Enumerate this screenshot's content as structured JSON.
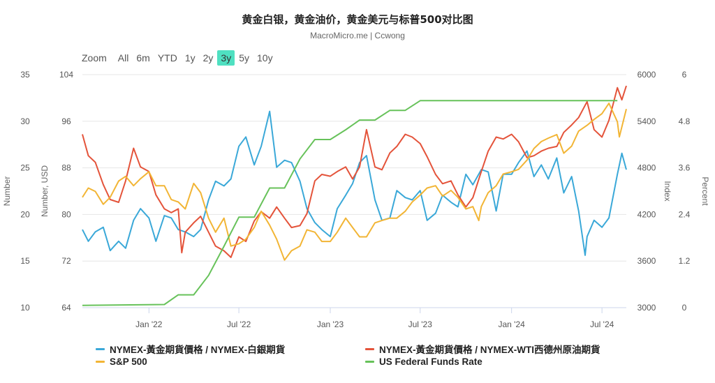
{
  "header": {
    "title": "黄金白银，黄金油价，黄金美元与标普500对比图",
    "subtitle": "MacroMicro.me | Ccwong"
  },
  "range_selector": {
    "label": "Zoom",
    "buttons": [
      "All",
      "6m",
      "YTD",
      "1y",
      "2y",
      "3y",
      "5y",
      "10y"
    ],
    "active": "3y"
  },
  "chart_data": {
    "type": "line",
    "x_range": [
      "2021-08-20",
      "2024-08-19"
    ],
    "x_ticks": [
      {
        "date": "2022-01-01",
        "label": "Jan '22"
      },
      {
        "date": "2022-07-01",
        "label": "Jul '22"
      },
      {
        "date": "2023-01-01",
        "label": "Jan '23"
      },
      {
        "date": "2023-07-01",
        "label": "Jul '23"
      },
      {
        "date": "2024-01-01",
        "label": "Jan '24"
      },
      {
        "date": "2024-07-01",
        "label": "Jul '24"
      }
    ],
    "grid": true,
    "legend_position": "bottom",
    "axes": [
      {
        "id": "number",
        "title": "Number",
        "side": "left",
        "range": [
          10,
          35
        ],
        "ticks": [
          "10",
          "15",
          "20",
          "25",
          "30",
          "35"
        ]
      },
      {
        "id": "usd",
        "title": "Number, USD",
        "side": "left",
        "range": [
          64,
          104
        ],
        "ticks": [
          "64",
          "72",
          "80",
          "88",
          "96",
          "104"
        ]
      },
      {
        "id": "index",
        "title": "Index",
        "side": "right",
        "range": [
          3000,
          6000
        ],
        "ticks": [
          "3000",
          "3600",
          "4200",
          "4800",
          "5400",
          "6000"
        ]
      },
      {
        "id": "percent",
        "title": "Percent",
        "side": "right",
        "range": [
          0,
          6
        ],
        "ticks": [
          "0",
          "1.2",
          "2.4",
          "3.6",
          "4.8",
          "6"
        ]
      }
    ],
    "series": [
      {
        "name": "NYMEX-黃金期貨價格 / NYMEX-白銀期貨",
        "axis": "usd",
        "color": "#3aa8d8",
        "points": [
          [
            "2021-08-20",
            77.4
          ],
          [
            "2021-09-01",
            75.4
          ],
          [
            "2021-09-15",
            77.0
          ],
          [
            "2021-10-01",
            77.8
          ],
          [
            "2021-10-15",
            73.8
          ],
          [
            "2021-11-01",
            75.4
          ],
          [
            "2021-11-15",
            74.2
          ],
          [
            "2021-12-01",
            79.0
          ],
          [
            "2021-12-15",
            81.0
          ],
          [
            "2022-01-01",
            79.4
          ],
          [
            "2022-01-15",
            75.4
          ],
          [
            "2022-02-01",
            79.8
          ],
          [
            "2022-02-15",
            79.4
          ],
          [
            "2022-03-01",
            77.4
          ],
          [
            "2022-03-15",
            77.0
          ],
          [
            "2022-04-01",
            76.2
          ],
          [
            "2022-04-15",
            77.4
          ],
          [
            "2022-05-01",
            82.5
          ],
          [
            "2022-05-15",
            85.7
          ],
          [
            "2022-06-01",
            84.9
          ],
          [
            "2022-06-15",
            86.1
          ],
          [
            "2022-07-01",
            91.7
          ],
          [
            "2022-07-15",
            93.3
          ],
          [
            "2022-08-01",
            88.5
          ],
          [
            "2022-08-15",
            91.7
          ],
          [
            "2022-09-01",
            97.7
          ],
          [
            "2022-09-15",
            88.1
          ],
          [
            "2022-10-01",
            89.3
          ],
          [
            "2022-10-15",
            88.9
          ],
          [
            "2022-11-01",
            85.7
          ],
          [
            "2022-11-15",
            81.0
          ],
          [
            "2022-12-01",
            78.6
          ],
          [
            "2022-12-15",
            77.4
          ],
          [
            "2023-01-01",
            76.2
          ],
          [
            "2023-01-15",
            81.0
          ],
          [
            "2023-02-01",
            83.3
          ],
          [
            "2023-02-15",
            85.3
          ],
          [
            "2023-03-01",
            88.9
          ],
          [
            "2023-03-15",
            90.1
          ],
          [
            "2023-04-01",
            82.5
          ],
          [
            "2023-04-15",
            79.0
          ],
          [
            "2023-05-01",
            79.4
          ],
          [
            "2023-05-15",
            84.1
          ],
          [
            "2023-06-01",
            82.9
          ],
          [
            "2023-06-15",
            82.5
          ],
          [
            "2023-07-01",
            84.1
          ],
          [
            "2023-07-15",
            79.0
          ],
          [
            "2023-08-01",
            80.2
          ],
          [
            "2023-08-15",
            83.3
          ],
          [
            "2023-09-01",
            82.1
          ],
          [
            "2023-09-15",
            81.3
          ],
          [
            "2023-10-01",
            86.9
          ],
          [
            "2023-10-15",
            85.1
          ],
          [
            "2023-11-01",
            87.7
          ],
          [
            "2023-11-15",
            87.3
          ],
          [
            "2023-12-01",
            80.6
          ],
          [
            "2023-12-15",
            86.9
          ],
          [
            "2024-01-01",
            86.9
          ],
          [
            "2024-01-15",
            88.9
          ],
          [
            "2024-02-01",
            90.9
          ],
          [
            "2024-02-15",
            86.5
          ],
          [
            "2024-03-01",
            88.5
          ],
          [
            "2024-03-15",
            86.1
          ],
          [
            "2024-04-01",
            89.7
          ],
          [
            "2024-04-15",
            83.7
          ],
          [
            "2024-05-01",
            86.5
          ],
          [
            "2024-05-15",
            80.6
          ],
          [
            "2024-05-28",
            73.0
          ],
          [
            "2024-06-01",
            76.2
          ],
          [
            "2024-06-15",
            79.0
          ],
          [
            "2024-07-01",
            77.8
          ],
          [
            "2024-07-15",
            79.4
          ],
          [
            "2024-08-01",
            86.9
          ],
          [
            "2024-08-10",
            90.5
          ],
          [
            "2024-08-19",
            87.7
          ]
        ]
      },
      {
        "name": "NYMEX-黃金期貨價格 / NYMEX-WTI西德州原油期貨",
        "axis": "number",
        "color": "#e4533a",
        "points": [
          [
            "2021-08-20",
            28.6
          ],
          [
            "2021-09-01",
            26.3
          ],
          [
            "2021-09-15",
            25.6
          ],
          [
            "2021-10-01",
            23.2
          ],
          [
            "2021-10-15",
            21.6
          ],
          [
            "2021-11-01",
            21.3
          ],
          [
            "2021-11-15",
            23.6
          ],
          [
            "2021-12-01",
            27.1
          ],
          [
            "2021-12-15",
            25.1
          ],
          [
            "2022-01-01",
            24.6
          ],
          [
            "2022-01-15",
            22.1
          ],
          [
            "2022-02-01",
            20.6
          ],
          [
            "2022-02-15",
            20.2
          ],
          [
            "2022-03-01",
            20.6
          ],
          [
            "2022-03-08",
            15.9
          ],
          [
            "2022-03-15",
            18.1
          ],
          [
            "2022-04-01",
            19.1
          ],
          [
            "2022-04-15",
            19.8
          ],
          [
            "2022-05-01",
            18.1
          ],
          [
            "2022-05-15",
            16.6
          ],
          [
            "2022-06-01",
            16.1
          ],
          [
            "2022-06-15",
            15.4
          ],
          [
            "2022-07-01",
            17.6
          ],
          [
            "2022-07-15",
            17.1
          ],
          [
            "2022-08-01",
            19.3
          ],
          [
            "2022-08-15",
            20.3
          ],
          [
            "2022-09-01",
            19.6
          ],
          [
            "2022-09-15",
            20.8
          ],
          [
            "2022-10-01",
            19.6
          ],
          [
            "2022-10-15",
            18.6
          ],
          [
            "2022-11-01",
            18.8
          ],
          [
            "2022-11-15",
            20.1
          ],
          [
            "2022-12-01",
            23.6
          ],
          [
            "2022-12-15",
            24.3
          ],
          [
            "2023-01-01",
            24.1
          ],
          [
            "2023-01-15",
            24.6
          ],
          [
            "2023-02-01",
            25.1
          ],
          [
            "2023-02-15",
            23.8
          ],
          [
            "2023-03-01",
            25.1
          ],
          [
            "2023-03-15",
            29.1
          ],
          [
            "2023-04-01",
            25.1
          ],
          [
            "2023-04-15",
            24.8
          ],
          [
            "2023-05-01",
            26.6
          ],
          [
            "2023-05-15",
            27.3
          ],
          [
            "2023-06-01",
            28.6
          ],
          [
            "2023-06-15",
            28.3
          ],
          [
            "2023-07-01",
            27.6
          ],
          [
            "2023-07-15",
            26.2
          ],
          [
            "2023-08-01",
            24.3
          ],
          [
            "2023-08-15",
            23.3
          ],
          [
            "2023-09-01",
            23.6
          ],
          [
            "2023-09-15",
            22.1
          ],
          [
            "2023-10-01",
            20.8
          ],
          [
            "2023-10-15",
            21.8
          ],
          [
            "2023-11-01",
            24.6
          ],
          [
            "2023-11-15",
            26.8
          ],
          [
            "2023-12-01",
            28.3
          ],
          [
            "2023-12-15",
            28.1
          ],
          [
            "2024-01-01",
            28.6
          ],
          [
            "2024-01-15",
            27.8
          ],
          [
            "2024-02-01",
            26.1
          ],
          [
            "2024-02-15",
            26.3
          ],
          [
            "2024-03-01",
            26.8
          ],
          [
            "2024-03-15",
            27.1
          ],
          [
            "2024-04-01",
            27.3
          ],
          [
            "2024-04-15",
            28.8
          ],
          [
            "2024-05-01",
            29.6
          ],
          [
            "2024-05-15",
            30.4
          ],
          [
            "2024-06-01",
            32.1
          ],
          [
            "2024-06-15",
            29.1
          ],
          [
            "2024-07-01",
            28.3
          ],
          [
            "2024-07-15",
            30.1
          ],
          [
            "2024-08-01",
            33.6
          ],
          [
            "2024-08-10",
            32.3
          ],
          [
            "2024-08-19",
            33.8
          ]
        ]
      },
      {
        "name": "S&P 500",
        "axis": "index",
        "color": "#f2b535",
        "points": [
          [
            "2021-08-20",
            4421
          ],
          [
            "2021-09-01",
            4540
          ],
          [
            "2021-09-15",
            4496
          ],
          [
            "2021-10-01",
            4331
          ],
          [
            "2021-10-15",
            4421
          ],
          [
            "2021-11-01",
            4630
          ],
          [
            "2021-11-15",
            4690
          ],
          [
            "2021-12-01",
            4570
          ],
          [
            "2021-12-15",
            4660
          ],
          [
            "2022-01-01",
            4750
          ],
          [
            "2022-01-15",
            4570
          ],
          [
            "2022-02-01",
            4570
          ],
          [
            "2022-02-15",
            4391
          ],
          [
            "2022-03-01",
            4361
          ],
          [
            "2022-03-15",
            4271
          ],
          [
            "2022-04-01",
            4600
          ],
          [
            "2022-04-15",
            4481
          ],
          [
            "2022-05-01",
            4152
          ],
          [
            "2022-05-15",
            3972
          ],
          [
            "2022-06-01",
            4152
          ],
          [
            "2022-06-15",
            3793
          ],
          [
            "2022-07-01",
            3823
          ],
          [
            "2022-07-15",
            3882
          ],
          [
            "2022-08-01",
            4032
          ],
          [
            "2022-08-15",
            4241
          ],
          [
            "2022-09-01",
            4062
          ],
          [
            "2022-09-15",
            3882
          ],
          [
            "2022-10-01",
            3613
          ],
          [
            "2022-10-15",
            3733
          ],
          [
            "2022-11-01",
            3793
          ],
          [
            "2022-11-15",
            4002
          ],
          [
            "2022-12-01",
            3972
          ],
          [
            "2022-12-15",
            3852
          ],
          [
            "2023-01-01",
            3852
          ],
          [
            "2023-01-15",
            3972
          ],
          [
            "2023-02-01",
            4152
          ],
          [
            "2023-02-15",
            4032
          ],
          [
            "2023-03-01",
            3912
          ],
          [
            "2023-03-15",
            3912
          ],
          [
            "2023-04-01",
            4092
          ],
          [
            "2023-04-15",
            4122
          ],
          [
            "2023-05-01",
            4152
          ],
          [
            "2023-05-15",
            4152
          ],
          [
            "2023-06-01",
            4241
          ],
          [
            "2023-06-15",
            4361
          ],
          [
            "2023-07-01",
            4451
          ],
          [
            "2023-07-15",
            4540
          ],
          [
            "2023-08-01",
            4570
          ],
          [
            "2023-08-15",
            4436
          ],
          [
            "2023-09-01",
            4510
          ],
          [
            "2023-09-15",
            4421
          ],
          [
            "2023-10-01",
            4271
          ],
          [
            "2023-10-15",
            4301
          ],
          [
            "2023-10-27",
            4122
          ],
          [
            "2023-11-01",
            4301
          ],
          [
            "2023-11-15",
            4481
          ],
          [
            "2023-12-01",
            4570
          ],
          [
            "2023-12-15",
            4720
          ],
          [
            "2024-01-01",
            4750
          ],
          [
            "2024-01-15",
            4780
          ],
          [
            "2024-02-01",
            4899
          ],
          [
            "2024-02-15",
            5049
          ],
          [
            "2024-03-01",
            5139
          ],
          [
            "2024-03-15",
            5183
          ],
          [
            "2024-04-01",
            5228
          ],
          [
            "2024-04-15",
            4989
          ],
          [
            "2024-05-01",
            5079
          ],
          [
            "2024-05-15",
            5273
          ],
          [
            "2024-06-01",
            5348
          ],
          [
            "2024-06-15",
            5423
          ],
          [
            "2024-07-01",
            5498
          ],
          [
            "2024-07-15",
            5632
          ],
          [
            "2024-08-01",
            5393
          ],
          [
            "2024-08-05",
            5198
          ],
          [
            "2024-08-19",
            5557
          ]
        ]
      },
      {
        "name": "US Federal Funds Rate",
        "axis": "percent",
        "color": "#67c25a",
        "points": [
          [
            "2021-08-20",
            0.06
          ],
          [
            "2022-02-01",
            0.08
          ],
          [
            "2022-03-01",
            0.33
          ],
          [
            "2022-04-01",
            0.33
          ],
          [
            "2022-05-01",
            0.83
          ],
          [
            "2022-06-01",
            1.58
          ],
          [
            "2022-07-01",
            2.33
          ],
          [
            "2022-08-01",
            2.33
          ],
          [
            "2022-09-01",
            3.08
          ],
          [
            "2022-10-01",
            3.08
          ],
          [
            "2022-11-01",
            3.83
          ],
          [
            "2022-12-01",
            4.33
          ],
          [
            "2023-01-01",
            4.33
          ],
          [
            "2023-02-01",
            4.58
          ],
          [
            "2023-03-01",
            4.83
          ],
          [
            "2023-04-01",
            4.83
          ],
          [
            "2023-05-01",
            5.08
          ],
          [
            "2023-06-01",
            5.08
          ],
          [
            "2023-07-01",
            5.33
          ],
          [
            "2024-08-01",
            5.33
          ]
        ]
      }
    ]
  }
}
